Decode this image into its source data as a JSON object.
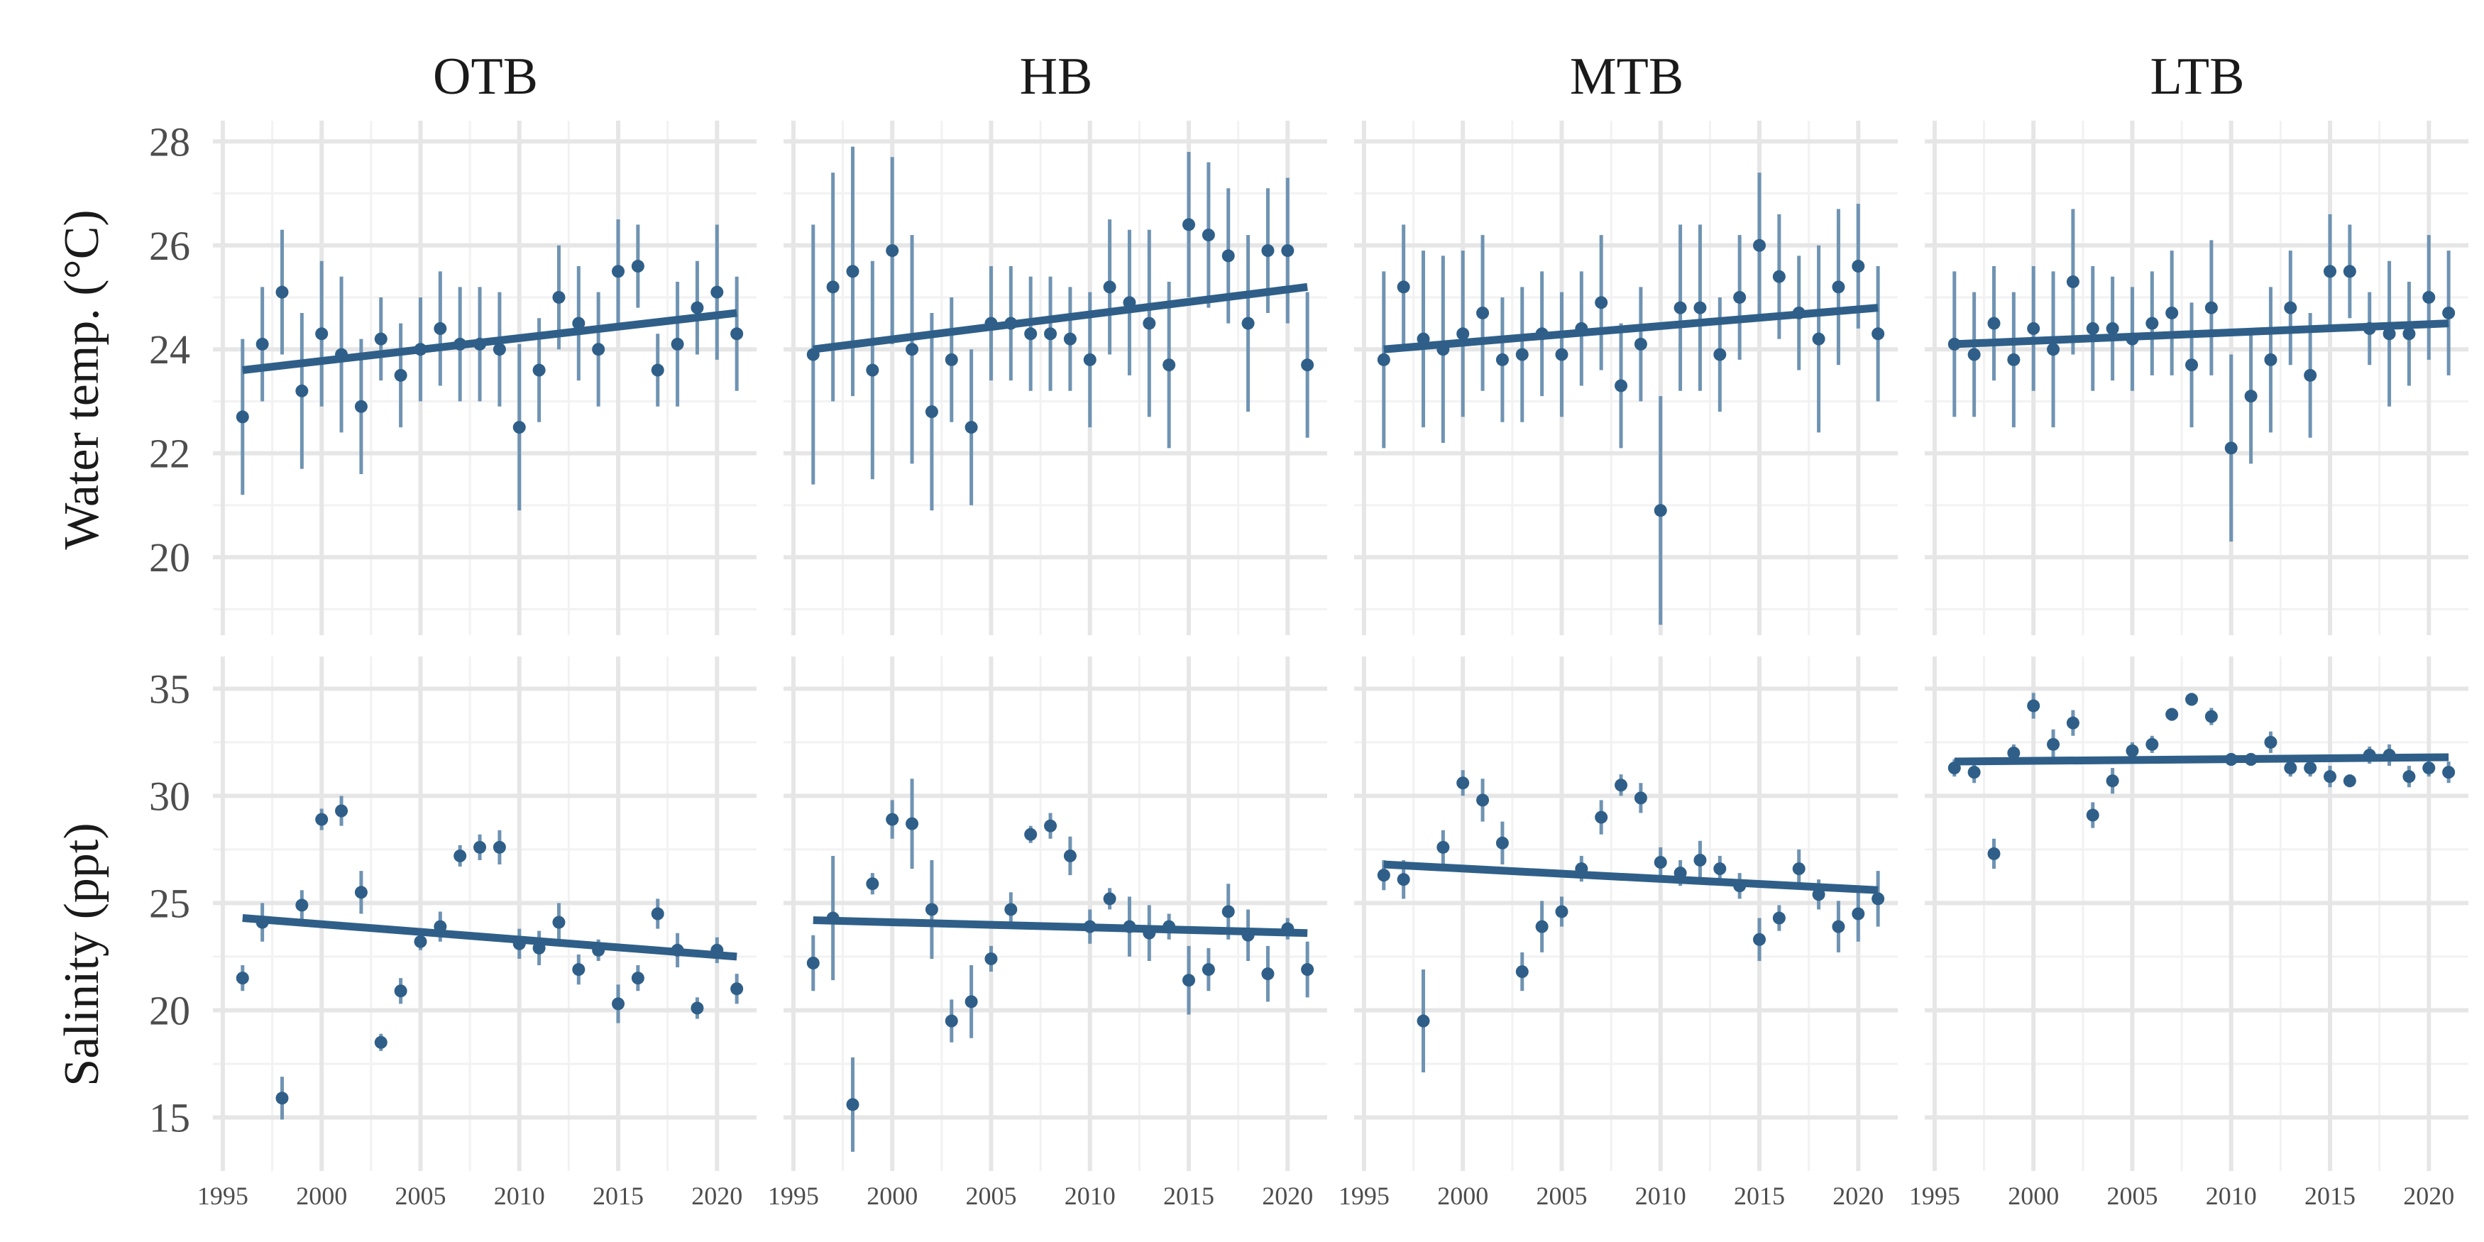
{
  "chart_data": {
    "type": "scatter",
    "layout": "facet-grid",
    "facets": [
      "OTB",
      "HB",
      "MTB",
      "LTB"
    ],
    "x_ticks": [
      1995,
      2000,
      2005,
      2010,
      2015,
      2020
    ],
    "xlim": [
      1994.5,
      2022
    ],
    "x": [
      1996,
      1997,
      1998,
      1999,
      2000,
      2001,
      2002,
      2003,
      2004,
      2005,
      2006,
      2007,
      2008,
      2009,
      2010,
      2011,
      2012,
      2013,
      2014,
      2015,
      2016,
      2017,
      2018,
      2019,
      2020,
      2021
    ],
    "colors": {
      "point": "#2f5f88",
      "errorbar": "#6f93b2",
      "trend": "#2f5f88"
    },
    "rows": [
      {
        "ylabel": "Water temp. (°C)",
        "ylim": [
          18.5,
          28.4
        ],
        "y_ticks": [
          20,
          22,
          24,
          26,
          28
        ],
        "series": {
          "OTB": {
            "values": [
              22.7,
              24.1,
              25.1,
              23.2,
              24.3,
              23.9,
              22.9,
              24.2,
              23.5,
              24.0,
              24.4,
              24.1,
              24.1,
              24.0,
              22.5,
              23.6,
              25.0,
              24.5,
              24.0,
              25.5,
              25.6,
              23.6,
              24.1,
              24.8,
              25.1,
              24.3
            ],
            "error": [
              1.5,
              1.1,
              1.2,
              1.5,
              1.4,
              1.5,
              1.3,
              0.8,
              1.0,
              1.0,
              1.1,
              1.1,
              1.1,
              1.1,
              1.6,
              1.0,
              1.0,
              1.1,
              1.1,
              1.0,
              0.8,
              0.7,
              1.2,
              0.9,
              1.3,
              1.1
            ],
            "trend": [
              23.6,
              24.7
            ]
          },
          "HB": {
            "values": [
              23.9,
              25.2,
              25.5,
              23.6,
              25.9,
              24.0,
              22.8,
              23.8,
              22.5,
              24.5,
              24.5,
              24.3,
              24.3,
              24.2,
              23.8,
              25.2,
              24.9,
              24.5,
              23.7,
              26.4,
              26.2,
              25.8,
              24.5,
              25.9,
              25.9,
              23.7
            ],
            "error": [
              2.5,
              2.2,
              2.4,
              2.1,
              1.8,
              2.2,
              1.9,
              1.2,
              1.5,
              1.1,
              1.1,
              1.1,
              1.1,
              1.0,
              1.3,
              1.3,
              1.4,
              1.8,
              1.6,
              1.4,
              1.4,
              1.3,
              1.7,
              1.2,
              1.4,
              1.4
            ],
            "trend": [
              24.0,
              25.2
            ]
          },
          "MTB": {
            "values": [
              23.8,
              25.2,
              24.2,
              24.0,
              24.3,
              24.7,
              23.8,
              23.9,
              24.3,
              23.9,
              24.4,
              24.9,
              23.3,
              24.1,
              20.9,
              24.8,
              24.8,
              23.9,
              25.0,
              26.0,
              25.4,
              24.7,
              24.2,
              25.2,
              25.6,
              24.3
            ],
            "error": [
              1.7,
              1.2,
              1.7,
              1.8,
              1.6,
              1.5,
              1.2,
              1.3,
              1.2,
              1.2,
              1.1,
              1.3,
              1.2,
              1.1,
              2.2,
              1.6,
              1.6,
              1.1,
              1.2,
              1.4,
              1.2,
              1.1,
              1.8,
              1.5,
              1.2,
              1.3
            ],
            "trend": [
              24.0,
              24.8
            ]
          },
          "LTB": {
            "values": [
              24.1,
              23.9,
              24.5,
              23.8,
              24.4,
              24.0,
              25.3,
              24.4,
              24.4,
              24.2,
              24.5,
              24.7,
              23.7,
              24.8,
              22.1,
              23.1,
              23.8,
              24.8,
              23.5,
              25.5,
              25.5,
              24.4,
              24.3,
              24.3,
              25.0,
              24.7
            ],
            "error": [
              1.4,
              1.2,
              1.1,
              1.3,
              1.2,
              1.5,
              1.4,
              1.2,
              1.0,
              1.0,
              1.0,
              1.2,
              1.2,
              1.3,
              1.8,
              1.3,
              1.4,
              1.1,
              1.2,
              1.1,
              0.9,
              0.7,
              1.4,
              1.0,
              1.2,
              1.2
            ],
            "trend": [
              24.1,
              24.5
            ]
          }
        }
      },
      {
        "ylabel": "Salinity (ppt)",
        "ylim": [
          12.5,
          36.5
        ],
        "y_ticks": [
          15,
          20,
          25,
          30,
          35
        ],
        "series": {
          "OTB": {
            "values": [
              21.5,
              24.1,
              15.9,
              24.9,
              28.9,
              29.3,
              25.5,
              18.5,
              20.9,
              23.2,
              23.9,
              27.2,
              27.6,
              27.6,
              23.1,
              22.9,
              24.1,
              21.9,
              22.8,
              20.3,
              21.5,
              24.5,
              22.8,
              20.1,
              22.8,
              21.0
            ],
            "error": [
              0.6,
              0.9,
              1.0,
              0.7,
              0.5,
              0.7,
              1.0,
              0.4,
              0.6,
              0.4,
              0.7,
              0.5,
              0.6,
              0.8,
              0.7,
              0.8,
              0.9,
              0.7,
              0.5,
              0.9,
              0.6,
              0.7,
              0.8,
              0.5,
              0.6,
              0.7
            ],
            "trend": [
              24.3,
              22.5
            ]
          },
          "HB": {
            "values": [
              22.2,
              24.3,
              15.6,
              25.9,
              28.9,
              28.7,
              24.7,
              19.5,
              20.4,
              22.4,
              24.7,
              28.2,
              28.6,
              27.2,
              23.9,
              25.2,
              23.9,
              23.6,
              23.9,
              21.4,
              21.9,
              24.6,
              23.5,
              21.7,
              23.8,
              21.9
            ],
            "error": [
              1.3,
              2.9,
              2.2,
              0.5,
              0.9,
              2.1,
              2.3,
              1.0,
              1.7,
              0.6,
              0.8,
              0.4,
              0.6,
              0.9,
              0.8,
              0.5,
              1.4,
              1.3,
              0.6,
              1.6,
              1.0,
              1.3,
              1.2,
              1.3,
              0.5,
              1.3
            ],
            "trend": [
              24.2,
              23.6
            ]
          },
          "MTB": {
            "values": [
              26.3,
              26.1,
              19.5,
              27.6,
              30.6,
              29.8,
              27.8,
              21.8,
              23.9,
              24.6,
              26.6,
              29.0,
              30.5,
              29.9,
              26.9,
              26.4,
              27.0,
              26.6,
              25.8,
              23.3,
              24.3,
              26.6,
              25.4,
              23.9,
              24.5,
              25.2
            ],
            "error": [
              0.7,
              0.9,
              2.4,
              0.8,
              0.6,
              1.0,
              1.0,
              0.9,
              1.2,
              0.7,
              0.6,
              0.8,
              0.5,
              0.7,
              0.7,
              0.6,
              0.9,
              0.6,
              0.6,
              1.0,
              0.6,
              0.9,
              0.7,
              1.2,
              1.3,
              1.3
            ],
            "trend": [
              26.8,
              25.6
            ]
          },
          "LTB": {
            "values": [
              31.3,
              31.1,
              27.3,
              32.0,
              34.2,
              32.4,
              33.4,
              29.1,
              30.7,
              32.1,
              32.4,
              33.8,
              34.5,
              33.7,
              31.7,
              31.7,
              32.5,
              31.3,
              31.3,
              30.9,
              30.7,
              31.9,
              31.9,
              30.9,
              31.3,
              31.1
            ],
            "error": [
              0.4,
              0.5,
              0.7,
              0.4,
              0.6,
              0.7,
              0.6,
              0.6,
              0.6,
              0.4,
              0.4,
              0.3,
              0.3,
              0.4,
              0.3,
              0.3,
              0.5,
              0.4,
              0.4,
              0.5,
              0.3,
              0.4,
              0.5,
              0.5,
              0.4,
              0.5
            ],
            "trend": [
              31.6,
              31.8
            ]
          }
        }
      }
    ]
  }
}
